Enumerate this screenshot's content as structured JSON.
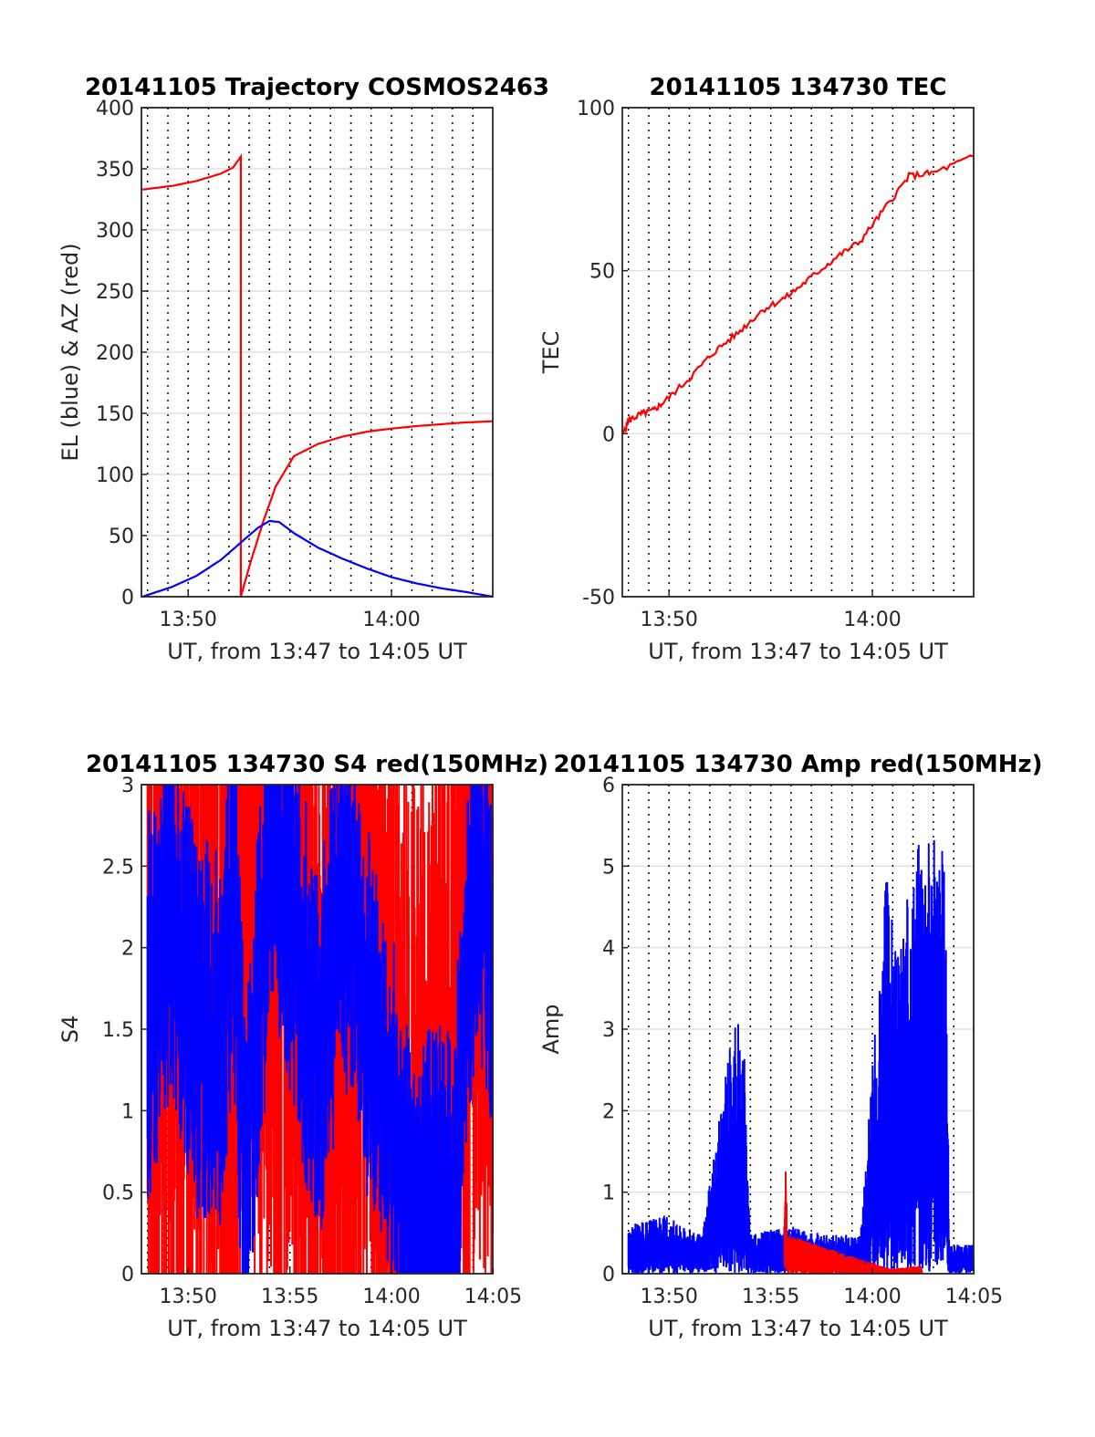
{
  "chart_data": [
    {
      "id": "traj",
      "type": "line",
      "title": "20141105 Trajectory COSMOS2463",
      "xlabel": "UT, from 13:47 to 14:05 UT",
      "ylabel": "EL (blue) & AZ (red)",
      "xlim": [
        13.795,
        14.083
      ],
      "ylim": [
        0,
        400
      ],
      "xticks": [
        13.8333,
        14.0
      ],
      "xtick_labels": [
        "13:50",
        "14:00"
      ],
      "yticks": [
        0,
        50,
        100,
        150,
        200,
        250,
        300,
        350,
        400
      ],
      "ytick_labels": [
        "0",
        "50",
        "100",
        "150",
        "200",
        "250",
        "300",
        "350",
        "400"
      ],
      "grid": true,
      "colors": {
        "EL": "#0000ff",
        "AZ": "#ff0000"
      },
      "series": [
        {
          "key": "AZ",
          "color": "#ff0000",
          "x": [
            13.7958,
            13.82,
            13.84,
            13.86,
            13.87,
            13.8765,
            13.8765,
            13.885,
            13.895,
            13.905,
            13.92,
            13.94,
            13.96,
            13.98,
            14.0,
            14.02,
            14.04,
            14.06,
            14.083
          ],
          "y": [
            333,
            336,
            340,
            346,
            351,
            360,
            0,
            30,
            62,
            90,
            115,
            125,
            131,
            135,
            137.5,
            139.5,
            141,
            142.5,
            143.5
          ]
        },
        {
          "key": "EL",
          "color": "#0000ff",
          "x": [
            13.7958,
            13.82,
            13.84,
            13.86,
            13.875,
            13.89,
            13.9,
            13.908,
            13.92,
            13.94,
            13.96,
            13.98,
            14.0,
            14.02,
            14.04,
            14.06,
            14.083
          ],
          "y": [
            0,
            8,
            17,
            30,
            43,
            56,
            62,
            61,
            52,
            40,
            31,
            23,
            16,
            11,
            7,
            4,
            0
          ]
        }
      ]
    },
    {
      "id": "tec",
      "type": "line",
      "title": "20141105 134730 TEC",
      "xlabel": "UT, from 13:47 to 14:05 UT",
      "ylabel": "TEC",
      "xlim": [
        13.795,
        14.083
      ],
      "ylim": [
        -50,
        100
      ],
      "xticks": [
        13.8333,
        14.0
      ],
      "xtick_labels": [
        "13:50",
        "14:00"
      ],
      "yticks": [
        -50,
        0,
        50,
        100
      ],
      "ytick_labels": [
        "-50",
        "0",
        "50",
        "100"
      ],
      "grid": true,
      "series": [
        {
          "key": "TEC",
          "color": "#ff0000",
          "x": [
            13.7958,
            13.8,
            13.81,
            13.82,
            13.83,
            13.85,
            13.87,
            13.89,
            13.91,
            13.93,
            13.95,
            13.97,
            13.99,
            14.01,
            14.03,
            14.05,
            14.083
          ],
          "y": [
            0,
            4,
            6,
            7,
            10,
            17,
            25,
            31,
            38,
            42,
            48,
            54,
            59,
            69,
            79,
            80,
            85
          ]
        }
      ]
    },
    {
      "id": "s4",
      "type": "line",
      "title": "20141105 134730 S4 red(150MHz)",
      "xlabel": "UT, from 13:47 to 14:05 UT",
      "ylabel": "S4",
      "xlim": [
        13.795,
        14.083
      ],
      "ylim": [
        0,
        3
      ],
      "xticks": [
        13.8333,
        13.9167,
        14.0,
        14.0833
      ],
      "xtick_labels": [
        "13:50",
        "13:55",
        "14:00",
        "14:05"
      ],
      "yticks": [
        0,
        0.5,
        1,
        1.5,
        2,
        2.5,
        3
      ],
      "ytick_labels": [
        "0",
        "0.5",
        "1",
        "1.5",
        "2",
        "2.5",
        "3"
      ],
      "grid": true,
      "series": [
        {
          "key": "S4 red",
          "color": "#ff0000",
          "x": [
            13.8,
            13.83,
            13.86,
            13.89,
            13.92,
            13.95,
            13.98,
            14.01,
            14.04,
            14.07,
            14.083
          ],
          "y": [
            1.6,
            2.2,
            1.4,
            2.6,
            2.0,
            0.8,
            2.4,
            0.5,
            0.4,
            2.8,
            2.0
          ]
        },
        {
          "key": "S4 blue",
          "color": "#0000ff",
          "x": [
            13.8,
            13.82,
            13.84,
            13.86,
            13.87,
            13.88,
            13.9,
            13.92,
            13.94,
            13.96,
            13.98,
            14.0,
            14.01,
            14.03,
            14.05,
            14.07,
            14.083
          ],
          "y": [
            1.6,
            2.3,
            1.5,
            1.4,
            2.4,
            0.5,
            2.6,
            2.2,
            1.2,
            2.4,
            1.6,
            1.1,
            0.35,
            0.32,
            0.33,
            2.6,
            2.0
          ]
        }
      ]
    },
    {
      "id": "amp",
      "type": "line",
      "title": "20141105 134730 Amp red(150MHz)",
      "xlabel": "UT, from 13:47 to 14:05 UT",
      "ylabel": "Amp",
      "xlim": [
        13.795,
        14.083
      ],
      "ylim": [
        0,
        6
      ],
      "xticks": [
        13.8333,
        13.9167,
        14.0,
        14.0833
      ],
      "xtick_labels": [
        "13:50",
        "13:55",
        "14:00",
        "14:05"
      ],
      "yticks": [
        0,
        1,
        2,
        3,
        4,
        5,
        6
      ],
      "ytick_labels": [
        "0",
        "1",
        "2",
        "3",
        "4",
        "5",
        "6"
      ],
      "grid": true,
      "series": [
        {
          "key": "Amp blue",
          "color": "#0000ff",
          "x": [
            13.8,
            13.83,
            13.86,
            13.888,
            13.895,
            13.9,
            13.93,
            13.96,
            13.99,
            14.012,
            14.02,
            14.04,
            14.06,
            14.063,
            14.083
          ],
          "y": [
            0.5,
            0.6,
            0.4,
            2.7,
            2.3,
            0.4,
            0.5,
            0.4,
            0.4,
            4.2,
            3.2,
            4.7,
            4.3,
            0.3,
            0.3
          ]
        },
        {
          "key": "Amp red",
          "color": "#ff0000",
          "x": [
            13.928,
            13.929,
            13.93,
            14.015,
            14.04,
            14.041
          ],
          "y": [
            0.5,
            1.3,
            0.4,
            0.05,
            0.08,
            0.0
          ]
        }
      ]
    }
  ]
}
